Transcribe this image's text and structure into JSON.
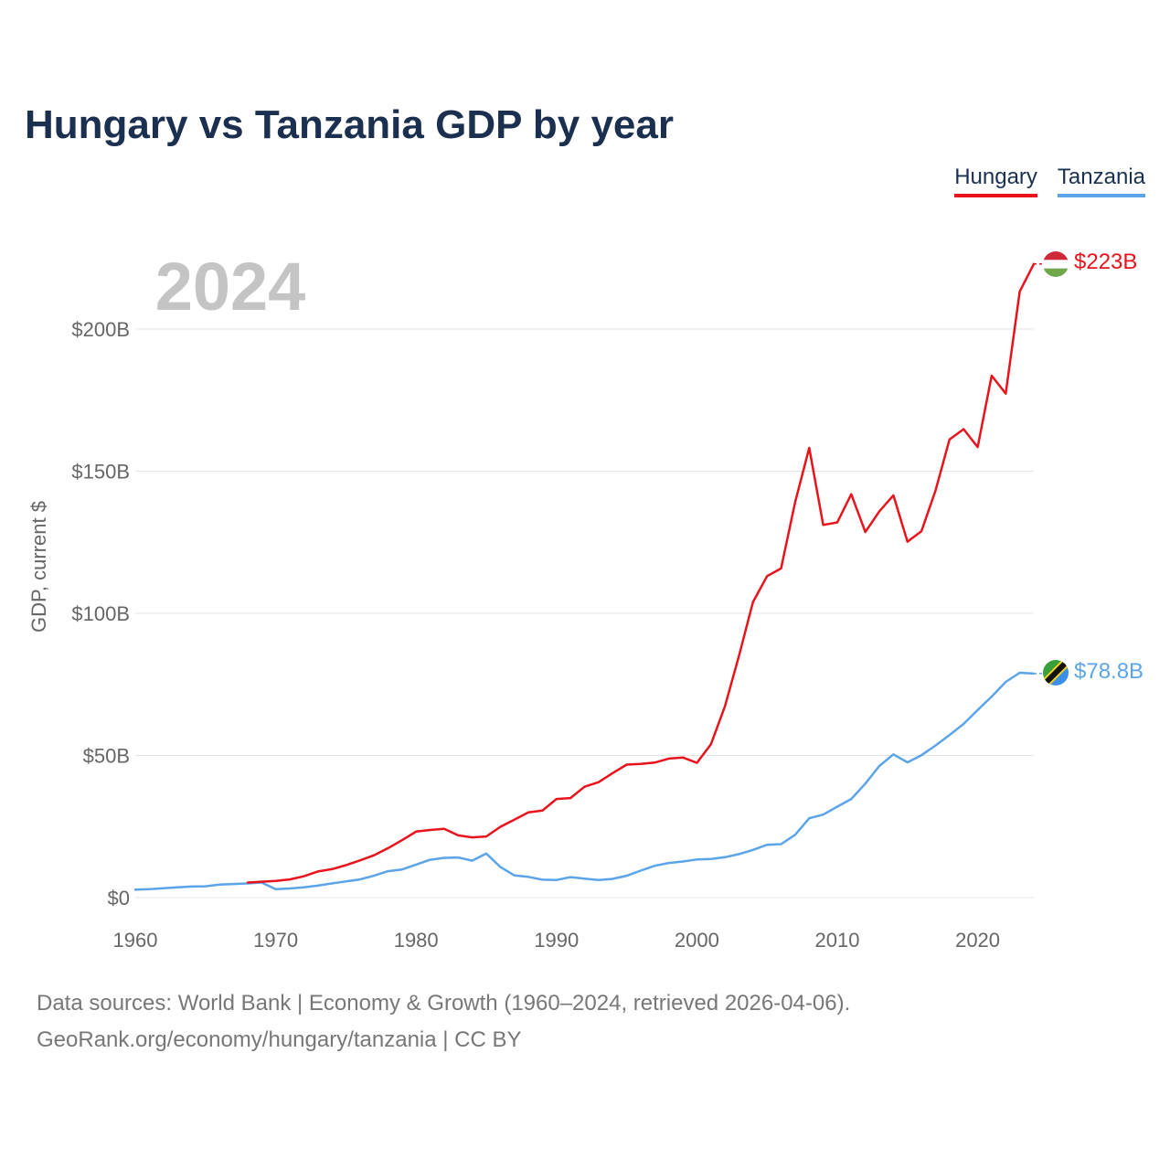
{
  "title": "Hungary vs Tanzania GDP by year",
  "legend": [
    {
      "name": "Hungary",
      "color": "#e8131b"
    },
    {
      "name": "Tanzania",
      "color": "#5ba4e8"
    }
  ],
  "year_label": "2024",
  "end_labels": {
    "hungary": "$223B",
    "tanzania": "$78.8B"
  },
  "source": {
    "line1": "Data sources: World Bank | Economy & Growth (1960–2024, retrieved 2026-04-06).",
    "line2": "GeoRank.org/economy/hungary/tanzania | CC BY"
  },
  "chart_data": {
    "type": "line",
    "title": "Hungary vs Tanzania GDP by year",
    "xlabel": "",
    "ylabel": "GDP, current $",
    "xlim": [
      1960,
      2024
    ],
    "ylim": [
      0,
      230
    ],
    "x_ticks": [
      1960,
      1970,
      1980,
      1990,
      2000,
      2010,
      2020
    ],
    "x_tick_labels": [
      "1960",
      "1970",
      "1980",
      "1990",
      "2000",
      "2010",
      "2020"
    ],
    "y_ticks": [
      0,
      50,
      100,
      150,
      200
    ],
    "y_tick_labels": [
      "$0",
      "$50B",
      "$100B",
      "$150B",
      "$200B"
    ],
    "grid": true,
    "legend_position": "top-right",
    "series": [
      {
        "name": "Hungary",
        "color": "#e8131b",
        "x": [
          1968,
          1969,
          1970,
          1971,
          1972,
          1973,
          1974,
          1975,
          1976,
          1977,
          1978,
          1979,
          1980,
          1981,
          1982,
          1983,
          1984,
          1985,
          1986,
          1987,
          1988,
          1989,
          1990,
          1991,
          1992,
          1993,
          1994,
          1995,
          1996,
          1997,
          1998,
          1999,
          2000,
          2001,
          2002,
          2003,
          2004,
          2005,
          2006,
          2007,
          2008,
          2009,
          2010,
          2011,
          2012,
          2013,
          2014,
          2015,
          2016,
          2017,
          2018,
          2019,
          2020,
          2021,
          2022,
          2023,
          2024
        ],
        "values": [
          5.3,
          5.6,
          5.9,
          6.4,
          7.5,
          9.2,
          10.0,
          11.4,
          13.1,
          14.9,
          17.4,
          20.2,
          23.2,
          23.8,
          24.2,
          21.9,
          21.2,
          21.5,
          24.9,
          27.4,
          30.0,
          30.6,
          34.7,
          35.0,
          39.0,
          40.6,
          43.8,
          46.8,
          47.0,
          47.5,
          48.9,
          49.3,
          47.4,
          53.9,
          67.3,
          85.1,
          104.0,
          113.1,
          115.8,
          139.1,
          158.2,
          131.1,
          132.0,
          141.9,
          128.6,
          135.9,
          141.5,
          125.2,
          128.9,
          143.2,
          161.2,
          164.8,
          158.5,
          183.6,
          177.3,
          213.2,
          222.9
        ]
      },
      {
        "name": "Tanzania",
        "color": "#5ba4e8",
        "x": [
          1960,
          1961,
          1962,
          1963,
          1964,
          1965,
          1966,
          1967,
          1968,
          1969,
          1970,
          1971,
          1972,
          1973,
          1974,
          1975,
          1976,
          1977,
          1978,
          1979,
          1980,
          1981,
          1982,
          1983,
          1984,
          1985,
          1986,
          1987,
          1988,
          1989,
          1990,
          1991,
          1992,
          1993,
          1994,
          1995,
          1996,
          1997,
          1998,
          1999,
          2000,
          2001,
          2002,
          2003,
          2004,
          2005,
          2006,
          2007,
          2008,
          2009,
          2010,
          2011,
          2012,
          2013,
          2014,
          2015,
          2016,
          2017,
          2018,
          2019,
          2020,
          2021,
          2022,
          2023,
          2024
        ],
        "values": [
          2.8,
          3.0,
          3.3,
          3.6,
          3.9,
          4.0,
          4.6,
          4.8,
          5.0,
          5.3,
          3.0,
          3.2,
          3.6,
          4.2,
          5.0,
          5.7,
          6.4,
          7.7,
          9.3,
          9.9,
          11.6,
          13.3,
          14.0,
          14.1,
          13.0,
          15.5,
          10.8,
          7.8,
          7.3,
          6.3,
          6.2,
          7.2,
          6.7,
          6.2,
          6.6,
          7.7,
          9.5,
          11.2,
          12.2,
          12.7,
          13.4,
          13.6,
          14.2,
          15.3,
          16.8,
          18.6,
          18.8,
          22.1,
          27.9,
          29.2,
          32.0,
          34.7,
          40.1,
          46.3,
          50.4,
          47.6,
          50.1,
          53.5,
          57.2,
          61.1,
          66.0,
          70.7,
          75.9,
          79.1,
          78.8
        ]
      }
    ]
  }
}
